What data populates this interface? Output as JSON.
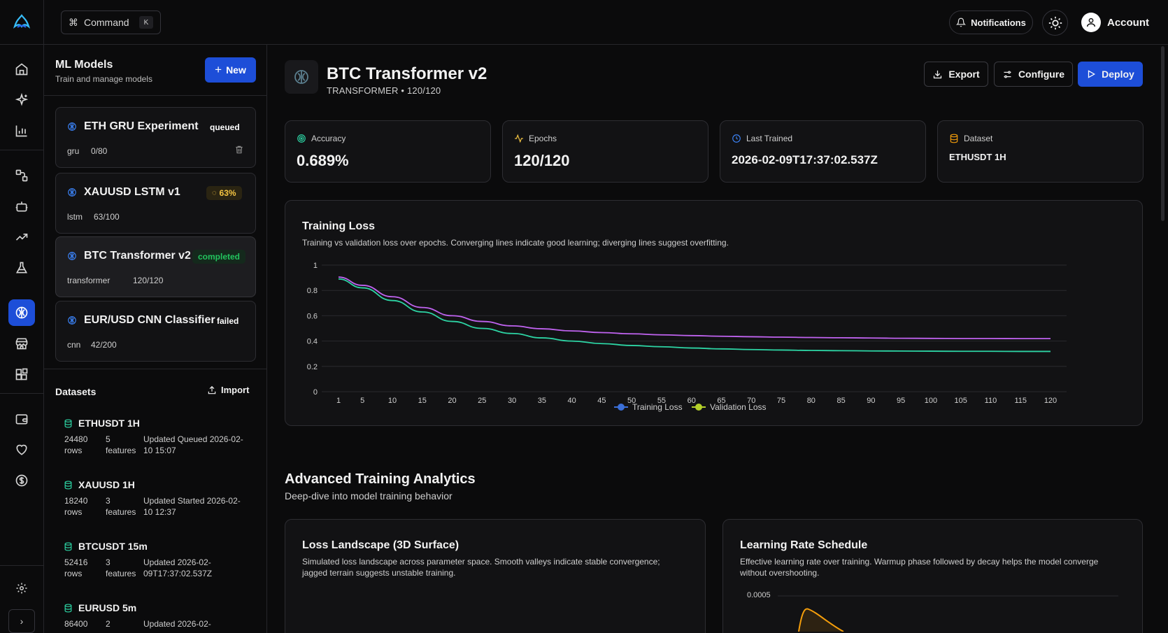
{
  "topbar": {
    "command_label": "Command",
    "command_key": "K",
    "notifications_label": "Notifications",
    "account_label": "Account"
  },
  "panel": {
    "title": "ML Models",
    "subtitle": "Train and manage models",
    "new_label": "New",
    "models": [
      {
        "name": "ETH GRU Experiment",
        "badge": "queued",
        "type": "gru",
        "epochs": "0/80"
      },
      {
        "name": "XAUUSD LSTM v1",
        "badge": "63%",
        "type": "lstm",
        "epochs": "63/100"
      },
      {
        "name": "BTC Transformer v2",
        "badge": "completed",
        "type": "transformer",
        "epochs": "120/120"
      },
      {
        "name": "EUR/USD CNN Classifier",
        "badge": "failed",
        "type": "cnn",
        "epochs": "42/200"
      }
    ],
    "datasets_title": "Datasets",
    "import_label": "Import",
    "datasets": [
      {
        "name": "ETHUSDT 1H",
        "rows": "24480 rows",
        "features": "5 features",
        "updated": "Updated Queued 2026-02-10 15:07"
      },
      {
        "name": "XAUUSD 1H",
        "rows": "18240 rows",
        "features": "3 features",
        "updated": "Updated Started 2026-02-10 12:37"
      },
      {
        "name": "BTCUSDT 15m",
        "rows": "52416 rows",
        "features": "3 features",
        "updated": "Updated 2026-02-09T17:37:02.537Z"
      },
      {
        "name": "EURUSD 5m",
        "rows": "86400",
        "features": "2",
        "updated": "Updated 2026-02-"
      }
    ]
  },
  "main": {
    "title": "BTC Transformer v2",
    "subtitle": "TRANSFORMER • 120/120",
    "export_label": "Export",
    "configure_label": "Configure",
    "deploy_label": "Deploy",
    "stats": [
      {
        "label": "Accuracy",
        "value": "0.689%"
      },
      {
        "label": "Epochs",
        "value": "120/120"
      },
      {
        "label": "Last Trained",
        "value": "2026-02-09T17:37:02.537Z"
      },
      {
        "label": "Dataset",
        "value": "ETHUSDT 1H"
      }
    ],
    "loss_card": {
      "title": "Training Loss",
      "desc": "Training vs validation loss over epochs. Converging lines indicate good learning; diverging lines suggest overfitting."
    },
    "section_title": "Advanced Training Analytics",
    "section_sub": "Deep-dive into model training behavior",
    "landscape_card": {
      "title": "Loss Landscape (3D Surface)",
      "desc": "Simulated loss landscape across parameter space. Smooth valleys indicate stable convergence; jagged terrain suggests unstable training."
    },
    "lr_card": {
      "title": "Learning Rate Schedule",
      "desc": "Effective learning rate over training. Warmup phase followed by decay helps the model converge without overshooting.",
      "top_tick": "0.0005"
    }
  },
  "colors": {
    "accent": "#1d4ed8",
    "training_line": "#2dd4a4",
    "validation_line": "#c063f0",
    "completed": "#22c55e",
    "progress": "#f5c542",
    "lr_line": "#f59e0b"
  },
  "chart_data": {
    "type": "line",
    "title": "Training Loss",
    "x": [
      1,
      5,
      10,
      15,
      20,
      25,
      30,
      35,
      40,
      45,
      50,
      55,
      60,
      65,
      70,
      75,
      80,
      85,
      90,
      95,
      100,
      105,
      110,
      115,
      120
    ],
    "ylim": [
      0,
      1
    ],
    "y_ticks": [
      "0",
      "0.2",
      "0.4",
      "0.6",
      "0.8",
      "1"
    ],
    "series": [
      {
        "name": "Training Loss",
        "values": [
          0.89,
          0.82,
          0.72,
          0.63,
          0.555,
          0.5,
          0.46,
          0.425,
          0.4,
          0.38,
          0.365,
          0.355,
          0.345,
          0.338,
          0.333,
          0.329,
          0.326,
          0.324,
          0.322,
          0.321,
          0.32,
          0.319,
          0.319,
          0.318,
          0.318
        ]
      },
      {
        "name": "Validation Loss",
        "values": [
          0.905,
          0.84,
          0.75,
          0.665,
          0.6,
          0.555,
          0.52,
          0.497,
          0.48,
          0.467,
          0.457,
          0.449,
          0.443,
          0.438,
          0.434,
          0.431,
          0.428,
          0.426,
          0.424,
          0.422,
          0.421,
          0.42,
          0.42,
          0.419,
          0.419
        ]
      }
    ],
    "legend": "bottom"
  }
}
